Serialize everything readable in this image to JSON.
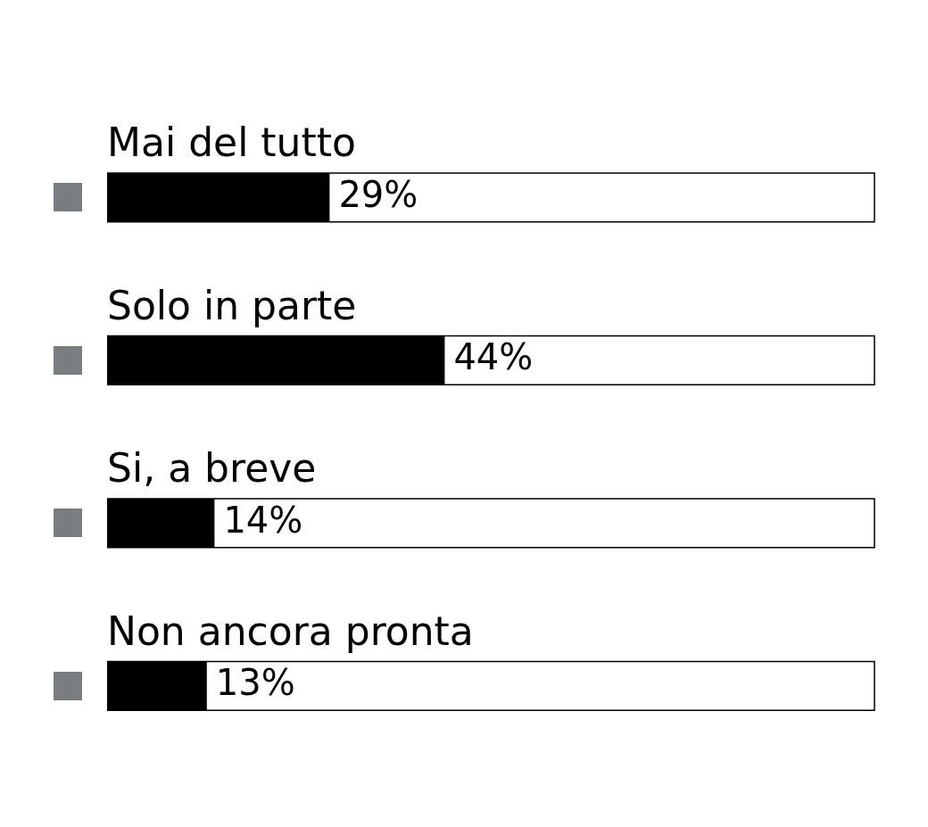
{
  "chart_data": {
    "type": "bar",
    "orientation": "horizontal",
    "categories": [
      "Mai del tutto",
      "Solo in parte",
      "Si, a breve",
      "Non ancora pronta"
    ],
    "values": [
      29,
      44,
      14,
      13
    ],
    "value_labels": [
      "29%",
      "44%",
      "14%",
      "13%"
    ],
    "color": "#000000",
    "xlim": [
      0,
      100
    ],
    "tick_labels": false,
    "legend": false
  }
}
